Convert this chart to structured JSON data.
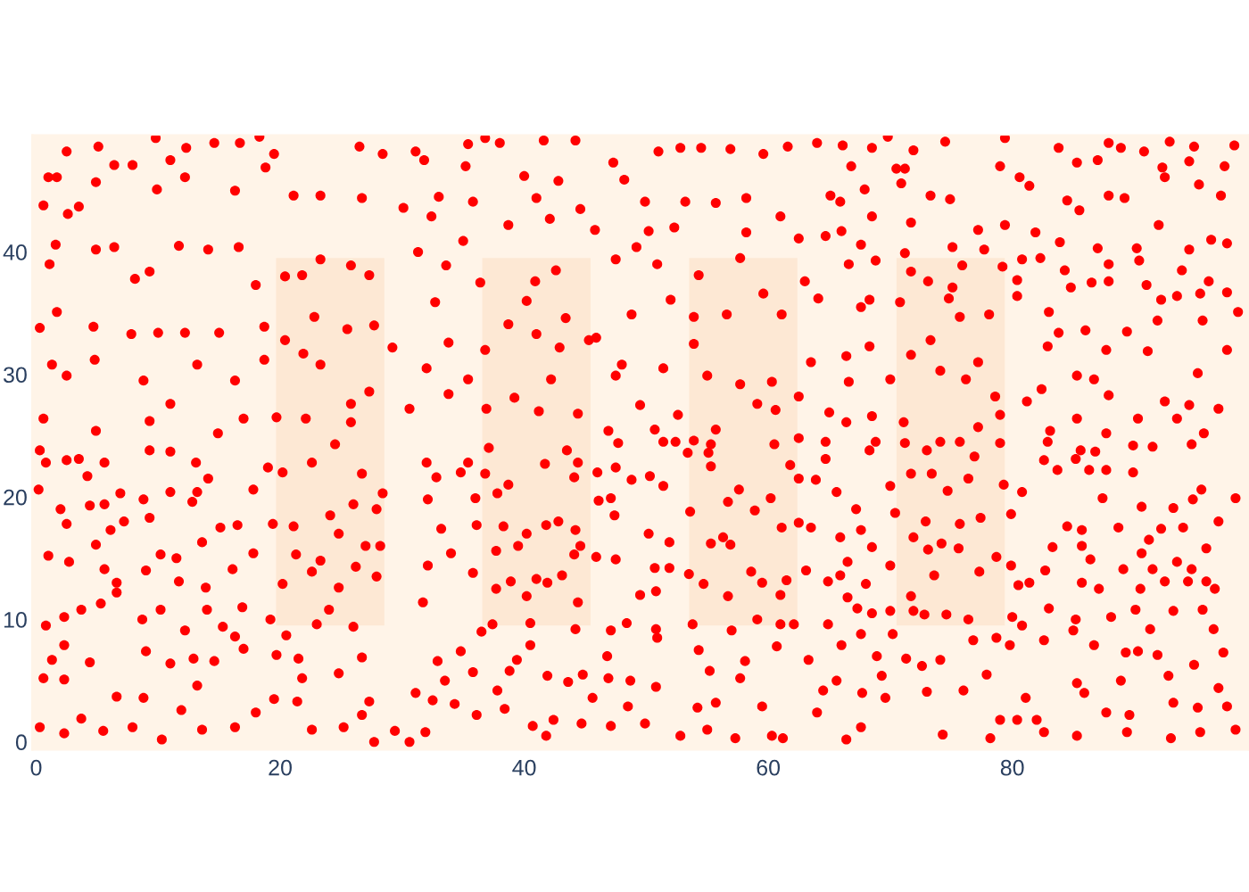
{
  "chart_data": {
    "type": "scatter",
    "xlim": [
      -0.3,
      99.4
    ],
    "ylim": [
      -0.6,
      49.5
    ],
    "xticks": [
      0,
      20,
      40,
      60,
      80
    ],
    "yticks": [
      0,
      10,
      20,
      30,
      40
    ],
    "grid": false,
    "marker": "circle",
    "series": [
      {
        "type": "bar",
        "color": "#fde8d4",
        "x": [
          24.1,
          41.0,
          57.95,
          74.95
        ],
        "base": [
          9.5,
          9.5,
          9.5,
          9.5
        ],
        "values": [
          30,
          30,
          30,
          30
        ]
      },
      {
        "color": "#ff0000",
        "x": [
          2.5,
          5.1,
          9.8,
          14.6,
          16.7,
          18.3,
          19.5,
          1.0,
          1.7,
          6.4,
          7.9,
          11.0,
          12.3,
          0.6,
          3.5,
          2.6,
          4.9,
          9.9,
          12.2,
          16.3,
          18.8,
          21.1,
          23.3,
          26.5,
          28.4,
          31.1,
          26.7,
          30.1,
          1.6,
          1.1,
          4.9,
          6.4,
          8.1,
          9.3,
          11.7,
          14.1,
          16.6,
          18.0,
          20.4,
          21.8,
          23.3,
          25.8,
          27.3,
          31.3,
          0.3,
          1.7,
          4.7,
          7.8,
          10.0,
          12.2,
          15.0,
          18.7,
          20.4,
          22.8,
          25.5,
          27.7,
          29.2,
          1.3,
          2.5,
          4.8,
          8.8,
          11.0,
          13.2,
          16.3,
          18.7,
          21.9,
          23.3,
          25.8,
          27.3,
          30.6,
          0.6,
          4.9,
          9.3,
          14.9,
          17.0,
          19.7,
          22.1,
          25.8,
          36.8,
          41.6,
          44.2,
          35.4,
          38.0,
          31.8,
          35.2,
          40.0,
          42.8,
          47.3,
          48.2,
          51.0,
          52.8,
          54.5,
          56.9,
          59.6,
          61.6,
          64.0,
          33.0,
          35.8,
          41.0,
          44.6,
          49.9,
          53.2,
          55.7,
          58.2,
          61.0,
          65.1,
          32.4,
          35.0,
          38.7,
          42.1,
          45.8,
          50.2,
          52.3,
          58.2,
          62.5,
          64.7,
          33.6,
          36.4,
          40.9,
          42.6,
          47.5,
          49.2,
          50.9,
          54.3,
          57.7,
          59.6,
          63.0,
          32.7,
          38.7,
          40.2,
          43.4,
          45.9,
          48.8,
          52.0,
          53.9,
          56.6,
          61.1,
          64.1,
          32.0,
          33.8,
          36.8,
          41.0,
          42.9,
          45.3,
          48.0,
          51.4,
          53.9,
          57.7,
          60.3,
          63.5,
          35.4,
          39.2,
          42.2,
          47.5,
          49.5,
          55.0,
          59.1,
          62.5,
          33.8,
          36.9,
          41.2,
          44.4,
          46.9,
          50.7,
          52.6,
          55.7,
          60.6,
          65.0,
          66.1,
          68.5,
          69.8,
          71.9,
          74.5,
          79.4,
          83.8,
          87.9,
          88.9,
          90.8,
          92.9,
          94.9,
          98.2,
          66.8,
          70.5,
          71.2,
          79.0,
          85.3,
          87.0,
          92.3,
          94.5,
          97.4,
          65.9,
          67.9,
          70.9,
          73.3,
          74.9,
          80.6,
          81.4,
          84.5,
          85.5,
          87.9,
          89.2,
          92.5,
          95.3,
          97.1,
          66.0,
          68.5,
          71.7,
          77.2,
          79.4,
          81.9,
          83.9,
          87.0,
          90.2,
          92.0,
          96.3,
          97.6,
          67.6,
          71.2,
          75.1,
          77.7,
          80.8,
          82.3,
          87.9,
          90.4,
          94.5,
          66.6,
          68.8,
          71.7,
          75.9,
          79.2,
          80.4,
          84.3,
          86.5,
          91.0,
          92.2,
          93.9,
          96.1,
          68.3,
          73.1,
          75.1,
          78.1,
          80.4,
          84.8,
          87.9,
          93.5,
          95.4,
          97.6,
          67.6,
          70.8,
          74.8,
          75.7,
          83.0,
          91.9,
          95.6,
          98.5,
          66.4,
          68.3,
          71.7,
          73.3,
          74.1,
          77.2,
          82.9,
          83.8,
          86.0,
          87.7,
          89.4,
          91.1,
          95.2,
          97.6,
          66.6,
          70.0,
          76.2,
          78.6,
          81.2,
          82.4,
          85.3,
          86.7,
          87.9,
          92.5,
          94.5,
          96.9,
          66.4,
          68.5,
          71.1,
          77.2,
          79.0,
          83.1,
          85.3,
          87.7,
          90.3,
          93.5,
          95.7,
          0.3,
          0.8,
          3.5,
          5.6,
          9.3,
          11.0,
          13.1,
          0.2,
          2.5,
          4.2,
          6.9,
          8.8,
          11.0,
          13.2,
          14.1,
          17.8,
          19.0,
          20.2,
          22.6,
          24.5,
          26.7,
          28.4,
          2.0,
          4.4,
          5.6,
          7.2,
          9.3,
          12.8,
          15.1,
          16.5,
          19.4,
          21.1,
          24.1,
          26.0,
          27.9,
          2.5,
          4.9,
          6.1,
          10.2,
          11.5,
          13.6,
          17.8,
          21.3,
          23.3,
          24.8,
          27.0,
          28.2,
          1.0,
          2.7,
          5.6,
          6.6,
          9.0,
          11.7,
          13.9,
          16.1,
          20.2,
          22.6,
          24.8,
          26.2,
          27.9,
          0.8,
          2.3,
          3.7,
          5.3,
          6.6,
          8.7,
          10.2,
          12.2,
          14.0,
          15.3,
          16.9,
          19.2,
          20.5,
          23.0,
          24.0,
          26.0,
          1.3,
          2.3,
          4.4,
          6.6,
          8.8,
          9.0,
          11.0,
          12.9,
          13.2,
          14.6,
          16.3,
          17.0,
          19.7,
          21.5,
          21.8,
          24.8,
          26.7,
          27.3,
          0.3,
          2.3,
          3.7,
          5.5,
          7.9,
          10.3,
          11.9,
          13.6,
          16.3,
          18.0,
          19.5,
          21.4,
          22.6,
          25.2,
          26.7,
          27.7,
          29.4,
          30.6,
          31.1,
          0.6,
          2.3,
          32.0,
          35.4,
          37.1,
          41.7,
          43.5,
          44.4,
          47.7,
          51.4,
          52.4,
          53.9,
          55.3,
          60.5,
          62.5,
          64.7,
          32.8,
          34.8,
          36.8,
          37.8,
          38.7,
          44.1,
          46.0,
          47.5,
          48.8,
          50.3,
          51.4,
          53.4,
          55.1,
          55.3,
          56.7,
          57.6,
          61.8,
          62.5,
          63.9,
          64.7,
          32.1,
          36.0,
          36.1,
          38.3,
          41.8,
          42.8,
          44.2,
          46.1,
          47.1,
          47.4,
          50.2,
          51.9,
          53.6,
          55.3,
          56.3,
          58.9,
          60.2,
          61.1,
          62.5,
          63.5,
          33.2,
          34.0,
          37.7,
          39.5,
          40.2,
          44.1,
          44.6,
          45.9,
          47.5,
          50.7,
          51.9,
          53.5,
          56.9,
          58.6,
          61.5,
          63.1,
          32.1,
          35.8,
          38.9,
          41.0,
          41.9,
          43.1,
          37.7,
          40.2,
          44.4,
          49.5,
          50.8,
          54.7,
          56.7,
          59.5,
          61.0,
          64.9,
          31.7,
          36.5,
          37.4,
          40.5,
          44.2,
          47.1,
          48.4,
          50.8,
          53.8,
          57.0,
          59.1,
          61.0,
          62.1,
          64.9,
          32.9,
          34.8,
          33.5,
          35.8,
          37.8,
          38.8,
          39.4,
          40.5,
          41.9,
          43.6,
          44.8,
          45.6,
          46.8,
          46.9,
          48.7,
          50.9,
          50.8,
          54.3,
          55.2,
          57.7,
          58.1,
          60.7,
          63.3,
          64.5,
          32.5,
          34.3,
          36.1,
          38.4,
          40.7,
          41.8,
          42.4,
          44.7,
          47.1,
          48.5,
          49.9,
          52.8,
          54.2,
          55.0,
          55.7,
          57.3,
          59.5,
          60.3,
          61.2,
          64.0,
          31.9,
          68.8,
          71.2,
          73.0,
          74.1,
          75.7,
          79.0,
          82.9,
          85.6,
          86.8,
          89.9,
          91.5,
          94.7,
          65.6,
          68.3,
          70.0,
          71.7,
          73.4,
          74.7,
          76.4,
          76.9,
          79.3,
          80.8,
          82.6,
          83.7,
          85.2,
          86.3,
          87.7,
          87.4,
          89.9,
          90.6,
          93.2,
          94.8,
          95.5,
          98.3,
          67.2,
          70.4,
          72.9,
          75.7,
          77.4,
          79.9,
          84.5,
          85.7,
          88.7,
          91.2,
          92.2,
          94.0,
          96.9,
          65.9,
          67.6,
          68.5,
          66.5,
          70.0,
          71.9,
          73.1,
          74.2,
          75.6,
          78.7,
          79.9,
          81.4,
          82.7,
          83.3,
          85.7,
          86.4,
          89.1,
          90.6,
          91.5,
          93.5,
          94.7,
          95.9,
          65.9,
          68.0,
          71.7,
          73.6,
          77.3,
          80.5,
          85.7,
          87.1,
          90.5,
          92.5,
          94.4,
          95.9,
          96.6,
          66.5,
          67.3,
          68.5,
          70.0,
          71.9,
          72.8,
          74.6,
          76.4,
          80.0,
          80.8,
          83.0,
          85.2,
          88.1,
          90.1,
          91.3,
          93.2,
          95.6,
          96.5,
          66.0,
          67.6,
          68.9,
          70.2,
          71.3,
          72.6,
          74.1,
          76.8,
          78.7,
          79.8,
          82.6,
          85.0,
          86.7,
          89.3,
          90.3,
          91.9,
          94.9,
          97.3,
          65.6,
          67.7,
          69.3,
          73.0,
          76.0,
          77.9,
          79.0,
          81.1,
          80.4,
          82.0,
          85.3,
          85.9,
          88.9,
          89.6,
          92.8,
          93.2,
          95.2,
          96.9,
          97.6,
          66.4,
          67.6,
          69.6,
          74.3,
          78.2,
          82.6,
          85.3,
          87.7,
          89.4,
          93.0,
          95.4,
          98.3
        ],
        "values": [
          48.2,
          48.6,
          49.3,
          48.9,
          48.9,
          49.4,
          48.0,
          46.1,
          46.1,
          47.1,
          47.1,
          47.5,
          48.5,
          43.8,
          43.7,
          43.1,
          45.7,
          45.1,
          46.1,
          45.0,
          46.9,
          44.6,
          44.6,
          48.6,
          48.0,
          48.2,
          44.4,
          43.6,
          40.6,
          39.0,
          40.2,
          40.4,
          37.8,
          38.4,
          40.5,
          40.2,
          40.4,
          37.3,
          38.0,
          38.1,
          39.4,
          38.9,
          38.1,
          40.0,
          33.8,
          35.1,
          33.9,
          33.3,
          33.4,
          33.4,
          33.4,
          33.9,
          32.8,
          34.7,
          33.7,
          34.0,
          32.2,
          30.8,
          29.9,
          31.2,
          29.5,
          27.6,
          30.8,
          29.5,
          31.2,
          31.7,
          30.8,
          27.6,
          28.6,
          27.2,
          26.4,
          25.4,
          26.2,
          25.2,
          26.4,
          26.5,
          26.4,
          26.1,
          49.3,
          49.1,
          49.1,
          48.8,
          48.9,
          47.5,
          47.0,
          46.2,
          45.8,
          47.3,
          45.9,
          48.2,
          48.5,
          48.5,
          48.4,
          48.0,
          48.6,
          48.9,
          44.5,
          44.1,
          44.4,
          43.5,
          44.1,
          44.1,
          44.0,
          44.4,
          42.9,
          44.6,
          42.9,
          40.9,
          42.2,
          42.7,
          41.8,
          41.7,
          42.0,
          41.6,
          41.1,
          41.3,
          38.9,
          37.5,
          37.6,
          38.5,
          39.4,
          40.4,
          39.0,
          38.1,
          39.5,
          36.6,
          37.6,
          35.9,
          34.1,
          36.0,
          34.6,
          33.0,
          34.9,
          36.1,
          34.7,
          34.9,
          34.9,
          36.2,
          30.5,
          32.6,
          32.0,
          33.3,
          32.2,
          32.8,
          30.8,
          30.5,
          32.5,
          29.2,
          29.4,
          31.0,
          29.6,
          28.1,
          29.6,
          29.9,
          27.5,
          29.9,
          27.6,
          28.2,
          28.4,
          27.2,
          27.0,
          26.8,
          25.4,
          25.5,
          26.7,
          25.5,
          27.1,
          26.9,
          48.7,
          48.5,
          49.4,
          48.3,
          49.0,
          49.3,
          48.5,
          48.9,
          48.5,
          48.2,
          49.0,
          48.6,
          48.7,
          47.0,
          46.8,
          46.8,
          47.0,
          47.3,
          47.5,
          46.9,
          47.4,
          47.0,
          44.1,
          45.1,
          45.6,
          44.6,
          44.3,
          46.1,
          45.4,
          44.2,
          43.4,
          44.6,
          44.4,
          46.1,
          45.5,
          44.6,
          41.7,
          42.9,
          42.4,
          41.8,
          42.2,
          41.6,
          40.8,
          40.3,
          40.3,
          42.2,
          41.0,
          40.7,
          40.6,
          39.9,
          40.4,
          40.2,
          39.4,
          39.5,
          39.0,
          39.3,
          40.2,
          39.0,
          39.3,
          38.4,
          38.9,
          38.8,
          37.7,
          38.5,
          37.5,
          37.3,
          36.1,
          38.5,
          37.6,
          36.1,
          37.6,
          37.1,
          34.9,
          36.4,
          37.1,
          37.6,
          36.4,
          36.6,
          36.7,
          35.5,
          35.9,
          36.2,
          34.7,
          35.1,
          34.4,
          34.4,
          35.1,
          31.5,
          32.3,
          31.6,
          32.8,
          30.3,
          31.0,
          32.3,
          33.4,
          33.6,
          32.0,
          33.5,
          31.9,
          30.1,
          32.0,
          29.4,
          29.6,
          29.6,
          28.2,
          27.8,
          28.8,
          29.9,
          29.6,
          28.3,
          27.8,
          27.5,
          27.2,
          26.1,
          26.6,
          26.1,
          25.7,
          26.7,
          25.4,
          26.4,
          25.2,
          26.4,
          26.4,
          25.2,
          23.8,
          22.8,
          23.1,
          22.8,
          23.8,
          23.7,
          22.8,
          20.6,
          23.0,
          21.7,
          20.3,
          19.8,
          20.4,
          20.4,
          21.5,
          20.6,
          22.4,
          22.0,
          22.8,
          24.3,
          21.9,
          20.3,
          19.0,
          19.3,
          19.4,
          18.0,
          18.3,
          19.6,
          17.5,
          17.7,
          17.8,
          17.6,
          18.5,
          19.4,
          19.0,
          17.8,
          16.1,
          17.3,
          15.3,
          15.0,
          16.3,
          15.4,
          15.3,
          14.8,
          17.0,
          16.0,
          16.0,
          15.2,
          14.7,
          14.1,
          13.0,
          14.0,
          13.1,
          12.6,
          14.1,
          12.9,
          13.9,
          12.6,
          14.3,
          13.5,
          9.5,
          10.2,
          10.8,
          11.3,
          12.2,
          10.0,
          10.8,
          9.1,
          10.8,
          9.4,
          11.0,
          10.0,
          8.7,
          9.6,
          10.8,
          9.4,
          6.7,
          7.9,
          6.5,
          3.7,
          3.6,
          7.4,
          6.4,
          6.8,
          4.6,
          6.6,
          8.6,
          7.6,
          7.1,
          6.8,
          5.2,
          5.6,
          6.9,
          3.3,
          1.2,
          0.7,
          1.9,
          0.9,
          1.2,
          0.2,
          2.6,
          1.0,
          1.2,
          2.4,
          3.5,
          3.3,
          1.0,
          1.2,
          2.2,
          0.0,
          0.9,
          0.0,
          4.0,
          5.2,
          5.1,
          22.8,
          22.8,
          24.0,
          22.7,
          23.8,
          22.8,
          24.4,
          24.5,
          24.5,
          24.6,
          24.3,
          24.3,
          24.8,
          24.5,
          21.6,
          22.0,
          21.9,
          20.3,
          21.0,
          21.6,
          22.0,
          22.4,
          21.4,
          21.7,
          20.9,
          23.6,
          23.6,
          22.5,
          19.6,
          20.6,
          22.6,
          21.5,
          21.4,
          23.1,
          19.8,
          19.9,
          17.7,
          17.6,
          17.7,
          18.0,
          17.3,
          19.7,
          19.9,
          18.5,
          17.0,
          16.3,
          18.8,
          16.2,
          16.7,
          18.9,
          19.9,
          17.5,
          17.9,
          17.5,
          17.4,
          15.4,
          15.6,
          16.0,
          17.0,
          15.3,
          16.0,
          15.1,
          14.9,
          14.2,
          14.2,
          13.7,
          16.1,
          13.9,
          13.2,
          14.0,
          14.4,
          13.8,
          13.1,
          13.3,
          13.0,
          13.6,
          12.5,
          11.9,
          11.4,
          12.0,
          12.3,
          12.9,
          11.9,
          13.0,
          12.0,
          13.1,
          11.4,
          9.0,
          9.6,
          9.7,
          9.2,
          9.1,
          9.7,
          9.2,
          9.6,
          9.1,
          10.0,
          9.6,
          9.6,
          9.6,
          6.6,
          7.4,
          5.0,
          5.7,
          4.2,
          5.8,
          6.7,
          7.9,
          5.4,
          4.9,
          5.5,
          3.6,
          7.0,
          5.2,
          5.0,
          8.5,
          4.5,
          7.5,
          5.8,
          5.2,
          6.6,
          7.8,
          6.7,
          4.2,
          3.4,
          3.1,
          2.2,
          2.7,
          1.3,
          0.5,
          1.8,
          1.5,
          1.3,
          2.9,
          1.5,
          0.5,
          2.8,
          1.0,
          3.2,
          0.3,
          2.9,
          0.5,
          0.3,
          2.4,
          0.8,
          24.5,
          24.4,
          23.8,
          24.5,
          24.5,
          24.4,
          24.5,
          23.8,
          23.7,
          24.2,
          24.1,
          24.3,
          20.4,
          23.8,
          20.9,
          21.9,
          21.9,
          20.5,
          21.5,
          23.3,
          21.0,
          20.4,
          23.0,
          22.2,
          23.1,
          22.2,
          22.2,
          19.9,
          22.0,
          19.2,
          19.1,
          19.8,
          20.6,
          19.9,
          19.0,
          18.7,
          18.0,
          17.8,
          18.3,
          18.6,
          17.6,
          17.3,
          17.5,
          16.5,
          17.4,
          17.5,
          18.0,
          16.7,
          17.3,
          15.9,
          14.7,
          14.4,
          16.7,
          15.7,
          16.2,
          15.8,
          15.1,
          14.4,
          13.0,
          14.0,
          15.9,
          16.0,
          14.9,
          14.1,
          15.4,
          14.1,
          14.7,
          14.1,
          15.8,
          13.6,
          12.9,
          11.9,
          13.6,
          13.9,
          12.8,
          13.0,
          12.5,
          12.5,
          13.1,
          13.1,
          13.1,
          12.5,
          11.8,
          10.9,
          10.5,
          10.7,
          10.7,
          10.4,
          10.4,
          10.0,
          10.2,
          9.5,
          10.9,
          10.0,
          10.2,
          10.8,
          9.2,
          10.7,
          10.8,
          9.2,
          7.9,
          8.8,
          7.0,
          8.8,
          6.8,
          6.2,
          6.7,
          8.3,
          8.5,
          7.9,
          8.3,
          9.1,
          7.9,
          7.3,
          7.4,
          7.1,
          6.3,
          7.3,
          5.0,
          4.0,
          5.4,
          4.1,
          4.2,
          5.5,
          1.8,
          3.6,
          1.8,
          1.8,
          4.8,
          4.0,
          5.0,
          2.2,
          5.4,
          3.2,
          2.8,
          4.4,
          2.9,
          0.2,
          1.2,
          3.6,
          0.6,
          0.3,
          0.8,
          0.5,
          2.4,
          0.8,
          0.3,
          0.8,
          1.0
        ]
      }
    ]
  }
}
